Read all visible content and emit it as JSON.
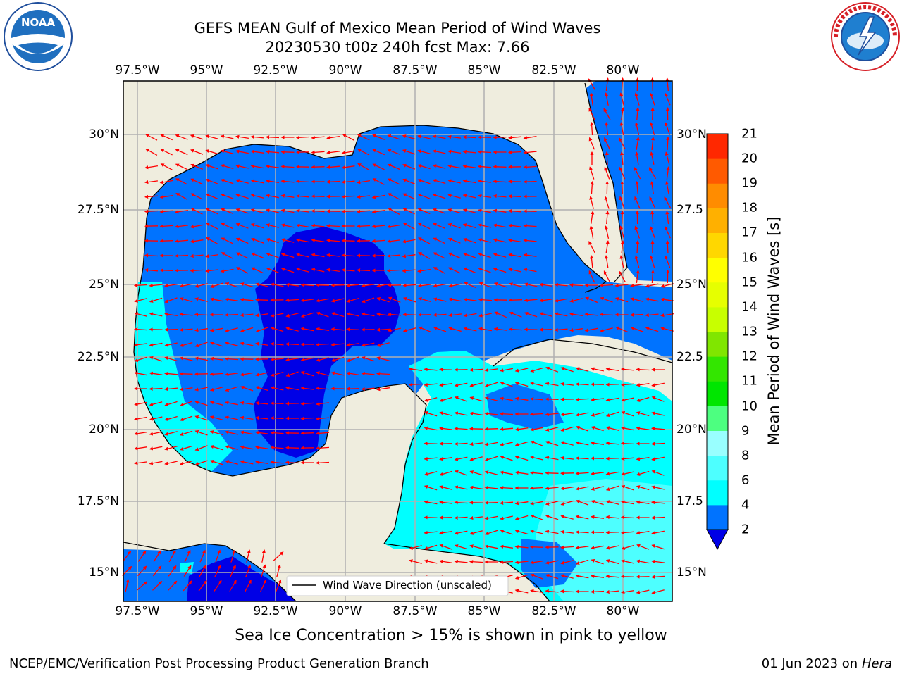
{
  "title": {
    "line1": "GEFS MEAN Gulf of Mexico Mean Period of Wind Waves",
    "line2": "20230530 t00z 240h fcst   Max: 7.66"
  },
  "logos": {
    "left": {
      "icon": "noaa-logo",
      "text": "NOAA",
      "ring_text": "NATIONAL OCEANIC AND ATMOSPHERIC ADMINISTRATION · U.S. DEPARTMENT OF COMMERCE"
    },
    "right": {
      "icon": "nws-logo",
      "ring_text": "NATIONAL WEATHER SERVICE"
    }
  },
  "map": {
    "lon_ticks": [
      "97.5°W",
      "95°W",
      "92.5°W",
      "90°W",
      "87.5°W",
      "85°W",
      "82.5°W",
      "80°W"
    ],
    "lat_ticks_left": [
      "30°N",
      "27.5°N",
      "25°N",
      "22.5°N",
      "20°N",
      "17.5°N",
      "15°N"
    ],
    "lat_ticks_right": [
      "30°N",
      "27.5",
      "25°N",
      "22.5",
      "20°N",
      "17.5",
      "15°N"
    ],
    "legend_label": "Wind Wave Direction (unscaled)",
    "colors": {
      "land": "#efedde",
      "ocean_band_2_4": "#0073ff",
      "ocean_band_lt2": "#0000e6",
      "ocean_band_4_6": "#00ffff",
      "ocean_band_6_8": "#4dffff",
      "arrow": "#ff0000",
      "grid": "#b0b0b0"
    }
  },
  "colorbar": {
    "label": "Mean Period of Wind Waves [s]",
    "ticks": [
      "2",
      "4",
      "6",
      "8",
      "9",
      "10",
      "11",
      "12",
      "13",
      "14",
      "15",
      "16",
      "17",
      "18",
      "19",
      "20",
      "21"
    ],
    "colors": [
      "#0073ff",
      "#00ffff",
      "#4dffff",
      "#99ffff",
      "#4dff80",
      "#00e600",
      "#33e600",
      "#80e600",
      "#c8ff00",
      "#e6ff00",
      "#ffff00",
      "#ffd700",
      "#ffb000",
      "#ff8c00",
      "#ff5a00",
      "#ff2800"
    ],
    "extend_color": "#0000e6"
  },
  "ice_note": "Sea Ice Concentration > 15% is shown in pink to yellow",
  "footer": {
    "left": "NCEP/EMC/Verification Post Processing Product Generation Branch",
    "right_date": "01 Jun 2023 on",
    "right_machine": "Hera"
  }
}
